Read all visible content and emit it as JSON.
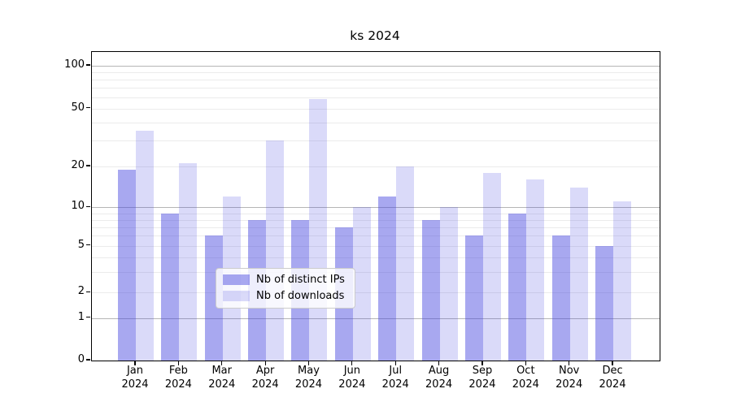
{
  "title": "ks 2024",
  "legend": {
    "items": [
      {
        "label": "Nb of distinct IPs",
        "color": "rgba(70,70,224,0.47)"
      },
      {
        "label": "Nb of downloads",
        "color": "rgba(70,70,224,0.20)"
      }
    ]
  },
  "y_axis": {
    "tick_labels": [
      "100",
      "50",
      "20",
      "10",
      "5",
      "2",
      "1",
      "0"
    ],
    "tick_values": [
      100,
      50,
      20,
      10,
      5,
      2,
      1,
      0
    ]
  },
  "x_axis": {
    "tick_labels": [
      "Jan\n2024",
      "Feb\n2024",
      "Mar\n2024",
      "Apr\n2024",
      "May\n2024",
      "Jun\n2024",
      "Jul\n2024",
      "Aug\n2024",
      "Sep\n2024",
      "Oct\n2024",
      "Nov\n2024",
      "Dec\n2024"
    ]
  },
  "chart_data": {
    "type": "bar",
    "title": "ks 2024",
    "categories": [
      "Jan 2024",
      "Feb 2024",
      "Mar 2024",
      "Apr 2024",
      "May 2024",
      "Jun 2024",
      "Jul 2024",
      "Aug 2024",
      "Sep 2024",
      "Oct 2024",
      "Nov 2024",
      "Dec 2024"
    ],
    "series": [
      {
        "name": "Nb of distinct IPs",
        "values": [
          19,
          9,
          6,
          8,
          8,
          7,
          12,
          8,
          6,
          9,
          6,
          5
        ]
      },
      {
        "name": "Nb of downloads",
        "values": [
          35,
          21,
          12,
          30,
          58,
          10,
          20,
          10,
          18,
          16,
          14,
          11
        ]
      }
    ],
    "xlabel": "",
    "ylabel": "",
    "yscale": "symlog",
    "ylim": [
      0,
      120
    ],
    "y_ticks": [
      0,
      1,
      2,
      5,
      10,
      20,
      50,
      100
    ],
    "grid": true,
    "legend_position": "lower center"
  },
  "colors": {
    "bar_distinct_ips": "rgba(70,70,224,0.47)",
    "bar_downloads": "rgba(70,70,224,0.20)",
    "grid_minor": "#ebebeb",
    "grid_major": "#b5b5b5",
    "axis": "#000000"
  }
}
